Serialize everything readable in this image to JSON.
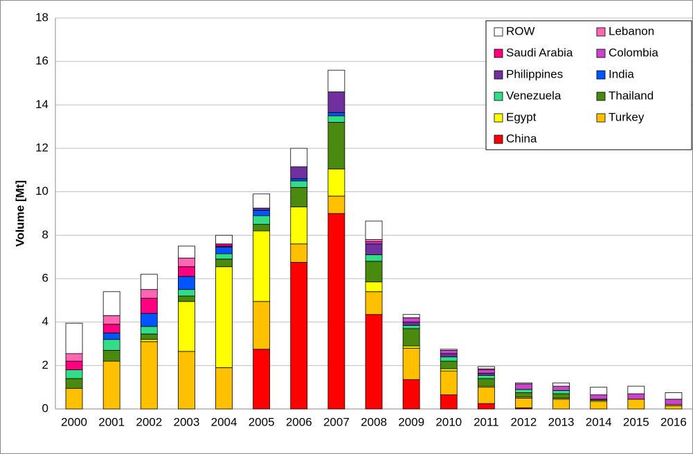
{
  "chart_data": {
    "type": "stacked_bar",
    "ylabel": "Volume [Mt]",
    "categories": [
      "2000",
      "2001",
      "2002",
      "2003",
      "2004",
      "2005",
      "2006",
      "2007",
      "2008",
      "2009",
      "2010",
      "2011",
      "2012",
      "2013",
      "2014",
      "2015",
      "2016"
    ],
    "ylim": [
      0,
      18
    ],
    "yticks": [
      0,
      2,
      4,
      6,
      8,
      10,
      12,
      14,
      16,
      18
    ],
    "grid": true,
    "series": [
      {
        "name": "ROW",
        "color": "#ffffff",
        "values": [
          1.4,
          1.1,
          0.7,
          0.55,
          0.4,
          0.65,
          0.85,
          1.0,
          0.85,
          0.15,
          0.05,
          0.1,
          0.05,
          0.15,
          0.35,
          0.35,
          0.3
        ]
      },
      {
        "name": "Lebanon",
        "color": "#ff66b3",
        "values": [
          0.35,
          0.4,
          0.4,
          0.4,
          0,
          0,
          0,
          0,
          0.1,
          0,
          0,
          0.05,
          0,
          0,
          0,
          0,
          0
        ]
      },
      {
        "name": "Saudi Arabia",
        "color": "#ff0080",
        "values": [
          0.4,
          0.4,
          0.7,
          0.45,
          0.1,
          0,
          0,
          0,
          0,
          0,
          0,
          0,
          0,
          0,
          0,
          0,
          0
        ]
      },
      {
        "name": "Colombia",
        "color": "#cc44cc",
        "values": [
          0,
          0,
          0,
          0,
          0,
          0,
          0,
          0,
          0.1,
          0.2,
          0.15,
          0.15,
          0.25,
          0.2,
          0.2,
          0.25,
          0.25
        ]
      },
      {
        "name": "Philippines",
        "color": "#7030a0",
        "values": [
          0,
          0,
          0,
          0,
          0.05,
          0.1,
          0.55,
          0.95,
          0.5,
          0.15,
          0.15,
          0.1,
          0,
          0,
          0,
          0,
          0
        ]
      },
      {
        "name": "India",
        "color": "#0055ff",
        "values": [
          0,
          0.3,
          0.6,
          0.6,
          0.3,
          0.25,
          0.1,
          0.15,
          0,
          0,
          0,
          0,
          0,
          0,
          0,
          0,
          0
        ]
      },
      {
        "name": "Venezuela",
        "color": "#33dd88",
        "values": [
          0.4,
          0.5,
          0.35,
          0.3,
          0.25,
          0.4,
          0.3,
          0.3,
          0.3,
          0.15,
          0.2,
          0.15,
          0.15,
          0.15,
          0,
          0,
          0
        ]
      },
      {
        "name": "Thailand",
        "color": "#4a8a10",
        "values": [
          0.45,
          0.5,
          0.25,
          0.25,
          0.35,
          0.3,
          0.9,
          2.15,
          0.95,
          0.8,
          0.35,
          0.35,
          0.2,
          0.2,
          0.05,
          0,
          0
        ]
      },
      {
        "name": "Egypt",
        "color": "#ffff00",
        "values": [
          0,
          0,
          0.1,
          2.3,
          4.65,
          3.25,
          1.7,
          1.25,
          0.45,
          0.1,
          0.1,
          0.05,
          0.05,
          0.05,
          0.05,
          0,
          0.05
        ]
      },
      {
        "name": "Turkey",
        "color": "#ffc000",
        "values": [
          0.95,
          2.2,
          3.1,
          2.65,
          1.9,
          2.2,
          0.85,
          0.8,
          1.05,
          1.45,
          1.1,
          0.75,
          0.45,
          0.45,
          0.35,
          0.45,
          0.15
        ]
      },
      {
        "name": "China",
        "color": "#ff0000",
        "values": [
          0,
          0,
          0,
          0,
          0,
          2.75,
          6.75,
          9.0,
          4.35,
          1.35,
          0.65,
          0.25,
          0.05,
          0,
          0,
          0,
          0
        ]
      }
    ]
  }
}
